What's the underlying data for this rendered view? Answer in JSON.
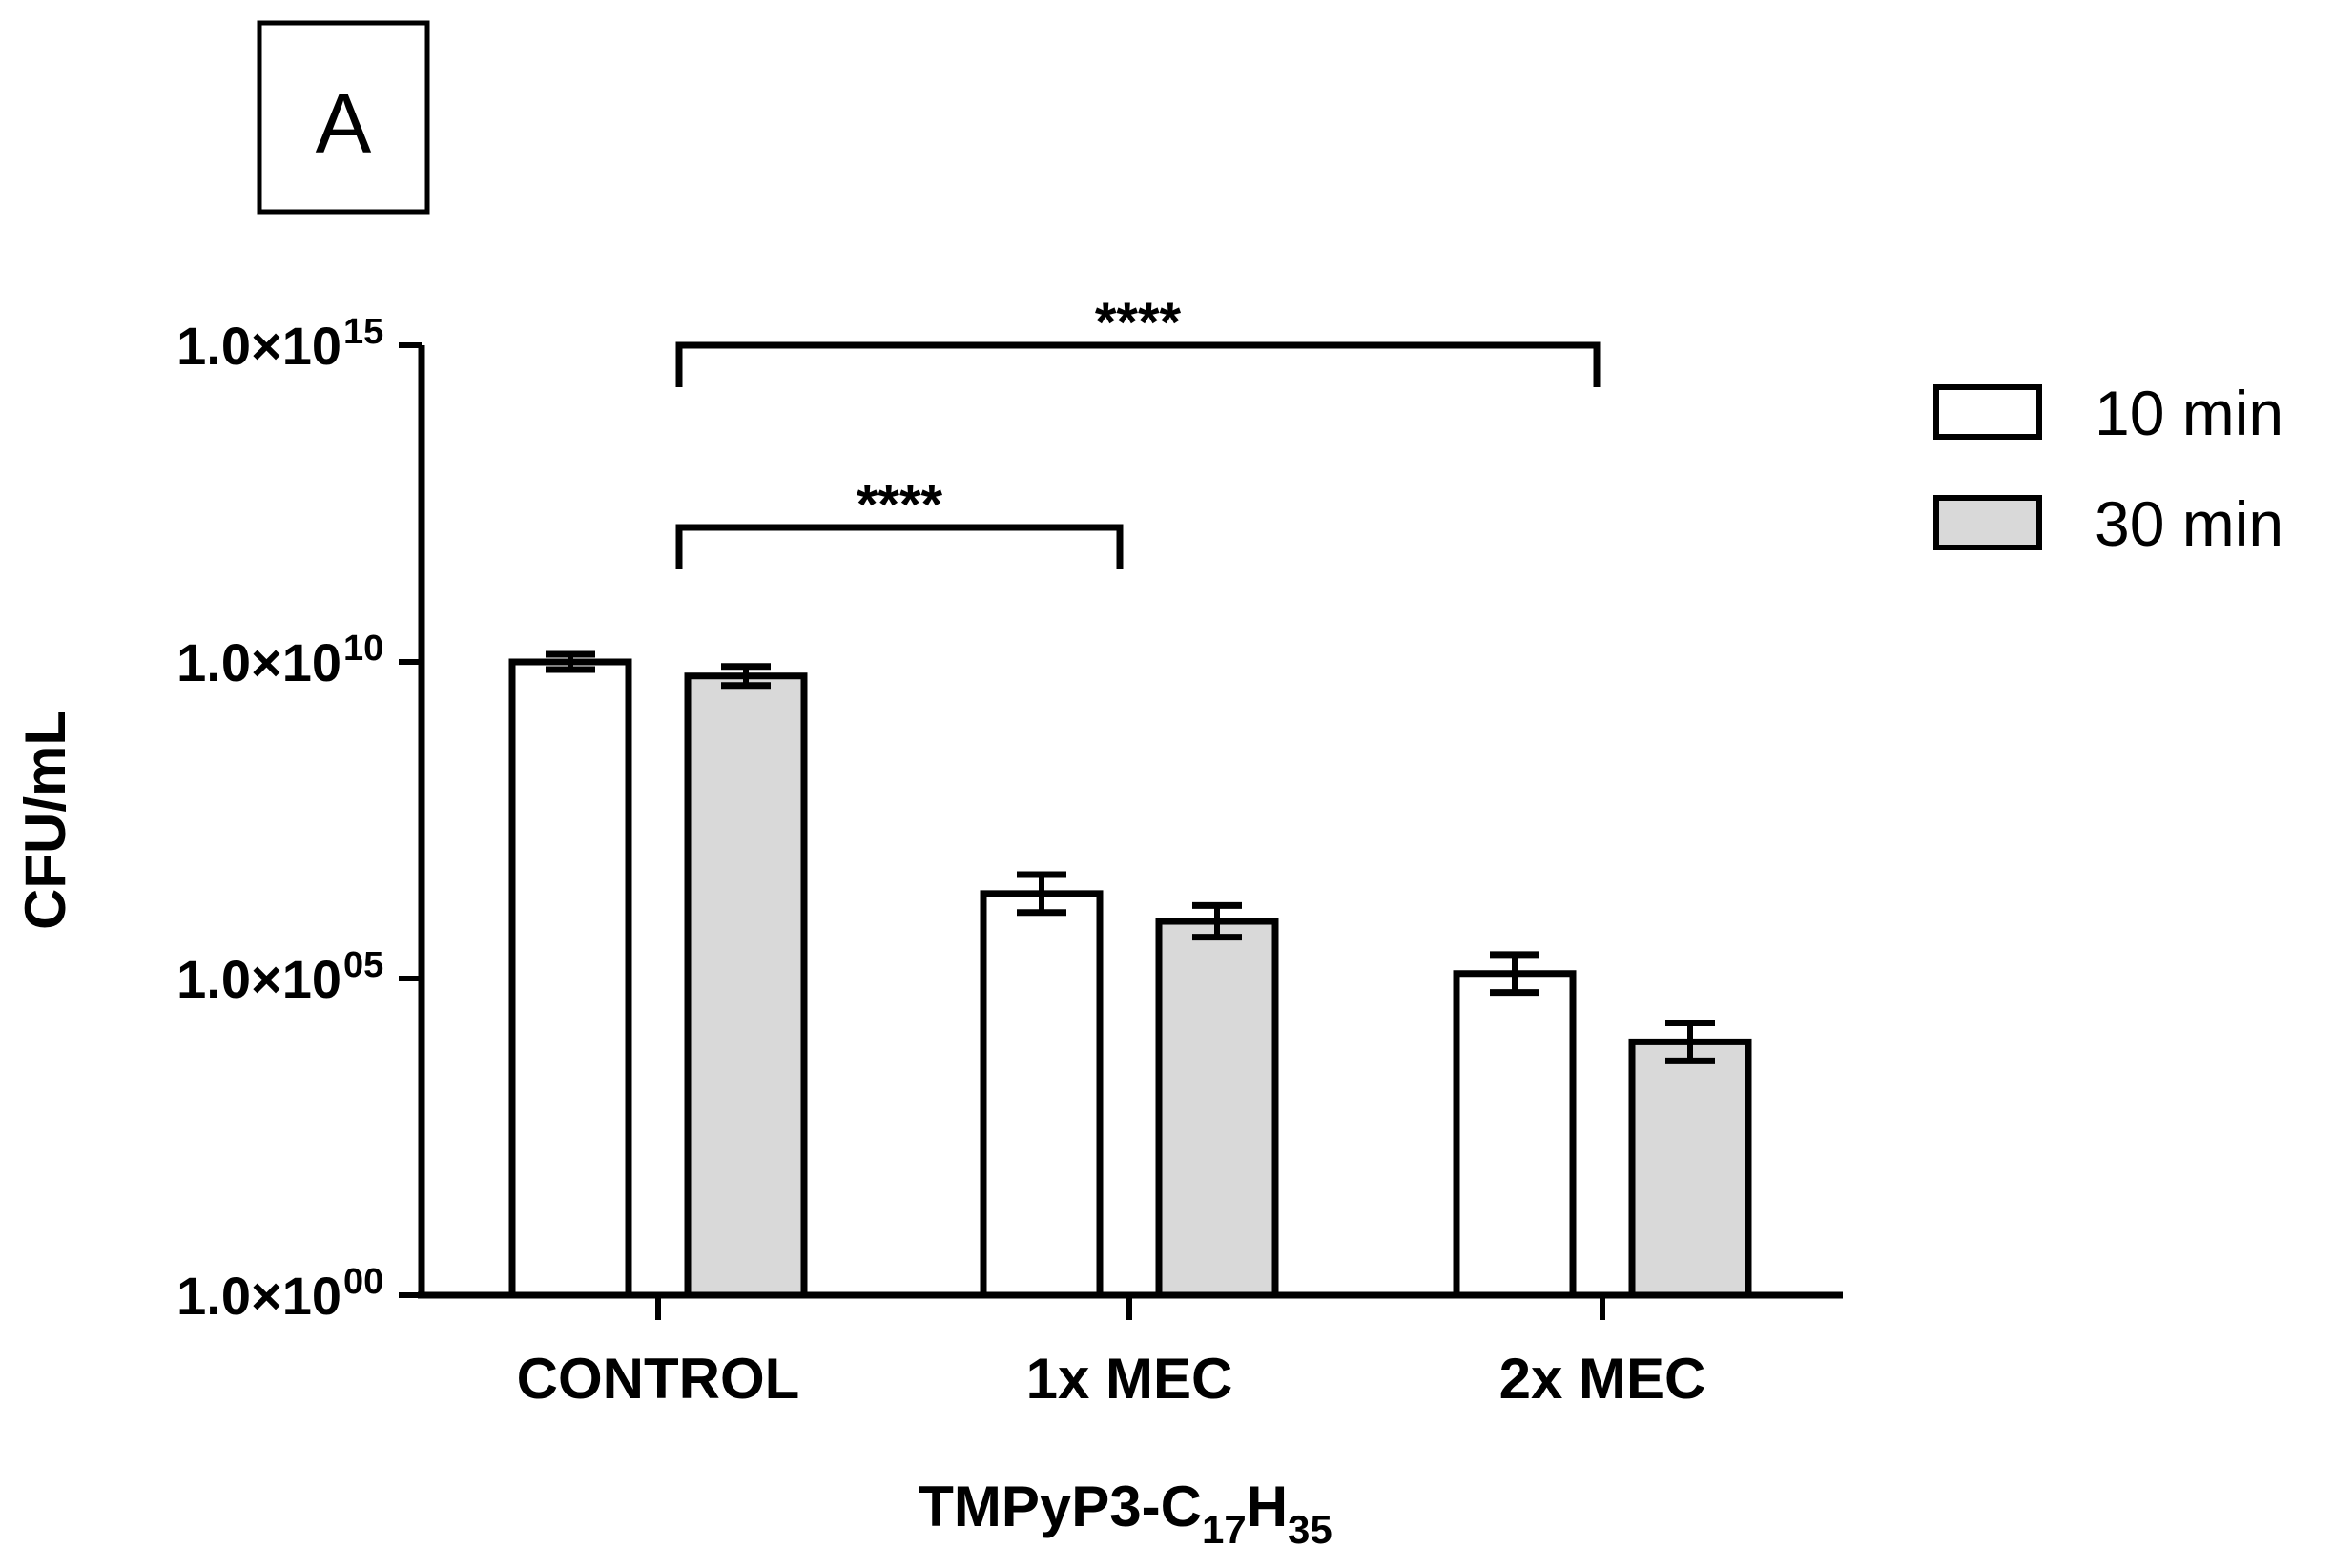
{
  "panel_label": "A",
  "chart_data": {
    "type": "bar",
    "scale": "log10",
    "categories": [
      "CONTROL",
      "1x MEC",
      "2x MEC"
    ],
    "series": [
      {
        "name": "10 min",
        "values": [
          10000000000.0,
          2200000.0,
          120000.0
        ],
        "errors_log10": [
          0.12,
          0.3,
          0.3
        ]
      },
      {
        "name": "30 min",
        "values": [
          6000000000.0,
          800000.0,
          10000.0
        ],
        "errors_log10": [
          0.15,
          0.25,
          0.3
        ]
      }
    ],
    "ylim_log10": [
      0,
      15
    ],
    "y_ticks": [
      {
        "exp": 0,
        "mantissa": "1.0×10",
        "power": "00"
      },
      {
        "exp": 5,
        "mantissa": "1.0×10",
        "power": "05"
      },
      {
        "exp": 10,
        "mantissa": "1.0×10",
        "power": "10"
      },
      {
        "exp": 15,
        "mantissa": "1.0×10",
        "power": "15"
      }
    ],
    "ylabel": "CFU/mL",
    "xlabel": {
      "main": "TMPyP3-C",
      "sub1": "17",
      "mid": "H",
      "sub2": "35"
    },
    "significance": [
      {
        "from": 0,
        "to": 1,
        "label": "****"
      },
      {
        "from": 0,
        "to": 2,
        "label": "****"
      }
    ],
    "legend_position": "top-right",
    "colors": {
      "series_0": "#ffffff",
      "series_1": "#d9d9d9",
      "stroke": "#000000"
    }
  }
}
